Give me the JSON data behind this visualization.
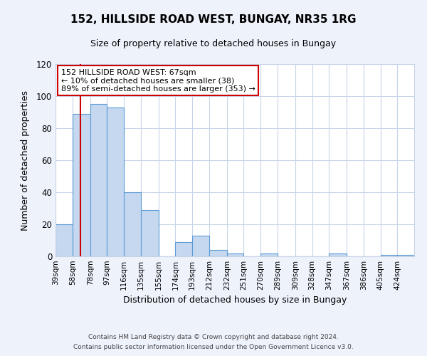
{
  "title": "152, HILLSIDE ROAD WEST, BUNGAY, NR35 1RG",
  "subtitle": "Size of property relative to detached houses in Bungay",
  "xlabel": "Distribution of detached houses by size in Bungay",
  "ylabel": "Number of detached properties",
  "bin_labels": [
    "39sqm",
    "58sqm",
    "78sqm",
    "97sqm",
    "116sqm",
    "135sqm",
    "155sqm",
    "174sqm",
    "193sqm",
    "212sqm",
    "232sqm",
    "251sqm",
    "270sqm",
    "289sqm",
    "309sqm",
    "328sqm",
    "347sqm",
    "367sqm",
    "386sqm",
    "405sqm",
    "424sqm"
  ],
  "bin_edges": [
    39,
    58,
    78,
    97,
    116,
    135,
    155,
    174,
    193,
    212,
    232,
    251,
    270,
    289,
    309,
    328,
    347,
    367,
    386,
    405,
    424,
    443
  ],
  "bar_heights": [
    20,
    89,
    95,
    93,
    40,
    29,
    0,
    9,
    13,
    4,
    2,
    0,
    2,
    0,
    0,
    0,
    2,
    0,
    0,
    1,
    1
  ],
  "bar_color": "#c5d8f0",
  "bar_edge_color": "#5b9bd5",
  "property_line_x": 67,
  "property_line_color": "#cc0000",
  "annotation_title": "152 HILLSIDE ROAD WEST: 67sqm",
  "annotation_line1": "← 10% of detached houses are smaller (38)",
  "annotation_line2": "89% of semi-detached houses are larger (353) →",
  "annotation_box_color": "#cc0000",
  "ylim": [
    0,
    120
  ],
  "yticks": [
    0,
    20,
    40,
    60,
    80,
    100,
    120
  ],
  "footer1": "Contains HM Land Registry data © Crown copyright and database right 2024.",
  "footer2": "Contains public sector information licensed under the Open Government Licence v3.0.",
  "bg_color": "#eef2fb",
  "plot_bg_color": "#ffffff",
  "grid_color": "#c8d4e8"
}
